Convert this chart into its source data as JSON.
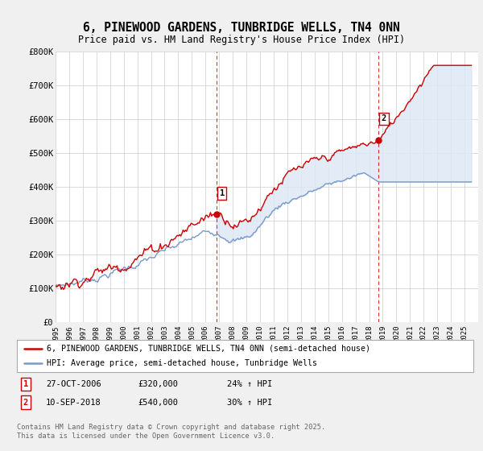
{
  "title": "6, PINEWOOD GARDENS, TUNBRIDGE WELLS, TN4 0NN",
  "subtitle": "Price paid vs. HM Land Registry's House Price Index (HPI)",
  "background_color": "#f0f0f0",
  "plot_bg_color": "#ffffff",
  "ylim": [
    0,
    800000
  ],
  "yticks": [
    0,
    100000,
    200000,
    300000,
    400000,
    500000,
    600000,
    700000,
    800000
  ],
  "ytick_labels": [
    "£0",
    "£100K",
    "£200K",
    "£300K",
    "£400K",
    "£500K",
    "£600K",
    "£700K",
    "£800K"
  ],
  "sale1_date": 2006.82,
  "sale1_price": 320000,
  "sale1_label": "1",
  "sale2_date": 2018.7,
  "sale2_price": 540000,
  "sale2_label": "2",
  "line_color_property": "#cc0000",
  "line_color_hpi": "#7799cc",
  "fill_color": "#dde8f5",
  "legend_property": "6, PINEWOOD GARDENS, TUNBRIDGE WELLS, TN4 0NN (semi-detached house)",
  "legend_hpi": "HPI: Average price, semi-detached house, Tunbridge Wells",
  "table_row1": [
    "1",
    "27-OCT-2006",
    "£320,000",
    "24% ↑ HPI"
  ],
  "table_row2": [
    "2",
    "10-SEP-2018",
    "£540,000",
    "30% ↑ HPI"
  ],
  "footer": "Contains HM Land Registry data © Crown copyright and database right 2025.\nThis data is licensed under the Open Government Licence v3.0.",
  "xmin": 1995,
  "xmax": 2026
}
